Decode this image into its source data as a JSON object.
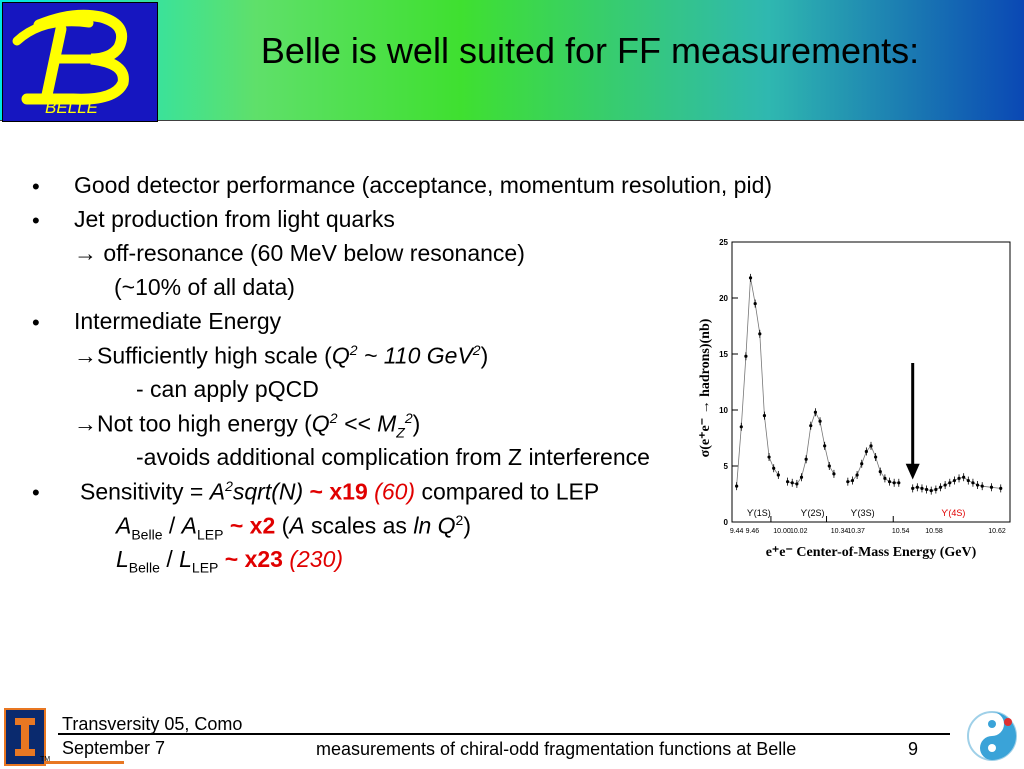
{
  "header": {
    "title": "Belle is well suited for FF measurements:",
    "logo_text": "BELLE",
    "colors": {
      "logo_bg": "#1616c0",
      "logo_fg": "#ffff00",
      "highlight": "#e00000"
    }
  },
  "bullets": {
    "b1": "Good detector performance (acceptance, momentum resolution, pid)",
    "b2": "Jet production from light quarks",
    "b2_sub1": "off-resonance (60 MeV below resonance)",
    "b2_sub2": "(~10% of all data)",
    "b3": "Intermediate Energy",
    "b3_sub1_pre": "Sufficiently high scale (",
    "b3_sub1_q": "Q",
    "b3_sub1_exp": "2",
    "b3_sub1_mid": " ~ 110 GeV",
    "b3_sub1_exp2": "2",
    "b3_sub1_post": ")",
    "b3_sub2": "- can apply pQCD",
    "b3_sub3_pre": "Not too high energy (",
    "b3_sub3_q": "Q",
    "b3_sub3_exp": "2",
    "b3_sub3_mid": " << M",
    "b3_sub3_subz": "Z",
    "b3_sub3_exp2": "2",
    "b3_sub3_post": ")",
    "b3_sub4": "-avoids additional complication from Z interference",
    "b4_pre": "Sensitivity = ",
    "b4_a": "A",
    "b4_exp": "2",
    "b4_sqrt": "sqrt(N)",
    "b4_factor": " ~ x19",
    "b4_paren": " (60)",
    "b4_post": " compared to LEP",
    "r1_a": "A",
    "r1_belle": "Belle",
    "r1_slash": " / ",
    "r1_a2": "A",
    "r1_lep": "LEP",
    "r1_factor": "  ~   x2",
    "r1_paren_open": " (",
    "r1_scales_a": "A",
    "r1_scales": " scales as ",
    "r1_ln": "ln Q",
    "r1_exp": "2",
    "r1_close": ")",
    "r2_l": "L",
    "r2_belle": "Belle",
    "r2_slash": " / ",
    "r2_l2": "L",
    "r2_lep": "LEP",
    "r2_factor": "  ~ x23",
    "r2_paren": " (230)",
    "arrow": "→",
    "bullet_symbol": "•"
  },
  "chart_data": {
    "type": "scatter",
    "xlabel": "e⁺e⁻ Center-of-Mass Energy (GeV)",
    "ylabel": "σ(e⁺e⁻ → hadrons)(nb)",
    "ylim": [
      0,
      25
    ],
    "yticks": [
      0,
      5,
      10,
      15,
      20,
      25
    ],
    "xtick_labels": [
      "9.44",
      "9.46",
      "10.00",
      "10.02",
      "10.34",
      "10.37",
      "10.54",
      "10.58",
      "10.62"
    ],
    "resonances": [
      {
        "label": "ϒ(1S)",
        "color": "#000000"
      },
      {
        "label": "ϒ(2S)",
        "color": "#000000"
      },
      {
        "label": "ϒ(3S)",
        "color": "#000000"
      },
      {
        "label": "ϒ(4S)",
        "color": "#e00000"
      }
    ],
    "points": [
      [
        0.5,
        3.2
      ],
      [
        1.0,
        8.5
      ],
      [
        1.5,
        14.8
      ],
      [
        2.0,
        21.8
      ],
      [
        2.5,
        19.5
      ],
      [
        3.0,
        16.8
      ],
      [
        3.5,
        9.5
      ],
      [
        4.0,
        5.8
      ],
      [
        4.5,
        4.8
      ],
      [
        5.0,
        4.2
      ],
      [
        6.0,
        3.6
      ],
      [
        6.5,
        3.5
      ],
      [
        7.0,
        3.4
      ],
      [
        7.5,
        4.0
      ],
      [
        8.0,
        5.6
      ],
      [
        8.5,
        8.6
      ],
      [
        9.0,
        9.8
      ],
      [
        9.5,
        9.0
      ],
      [
        10.0,
        6.8
      ],
      [
        10.5,
        5.0
      ],
      [
        11.0,
        4.3
      ],
      [
        12.5,
        3.6
      ],
      [
        13.0,
        3.7
      ],
      [
        13.5,
        4.2
      ],
      [
        14.0,
        5.2
      ],
      [
        14.5,
        6.3
      ],
      [
        15.0,
        6.8
      ],
      [
        15.5,
        5.8
      ],
      [
        16.0,
        4.5
      ],
      [
        16.5,
        3.9
      ],
      [
        17.0,
        3.6
      ],
      [
        17.5,
        3.5
      ],
      [
        18.0,
        3.5
      ],
      [
        19.5,
        3.0
      ],
      [
        20.0,
        3.1
      ],
      [
        20.5,
        3.0
      ],
      [
        21.0,
        2.9
      ],
      [
        21.5,
        2.8
      ],
      [
        22.0,
        2.9
      ],
      [
        22.5,
        3.1
      ],
      [
        23.0,
        3.3
      ],
      [
        23.5,
        3.5
      ],
      [
        24.0,
        3.7
      ],
      [
        24.5,
        3.9
      ],
      [
        25.0,
        4.0
      ],
      [
        25.5,
        3.7
      ],
      [
        26.0,
        3.5
      ],
      [
        26.5,
        3.3
      ],
      [
        27.0,
        3.2
      ],
      [
        28.0,
        3.1
      ],
      [
        29.0,
        3.0
      ]
    ],
    "arrow_x": 19.5
  },
  "footer": {
    "conference": "Transversity 05, Como",
    "date": "September 7",
    "talk_title": "measurements of chiral-odd fragmentation functions at Belle",
    "page": "9",
    "uiuc_mark": "TM"
  }
}
